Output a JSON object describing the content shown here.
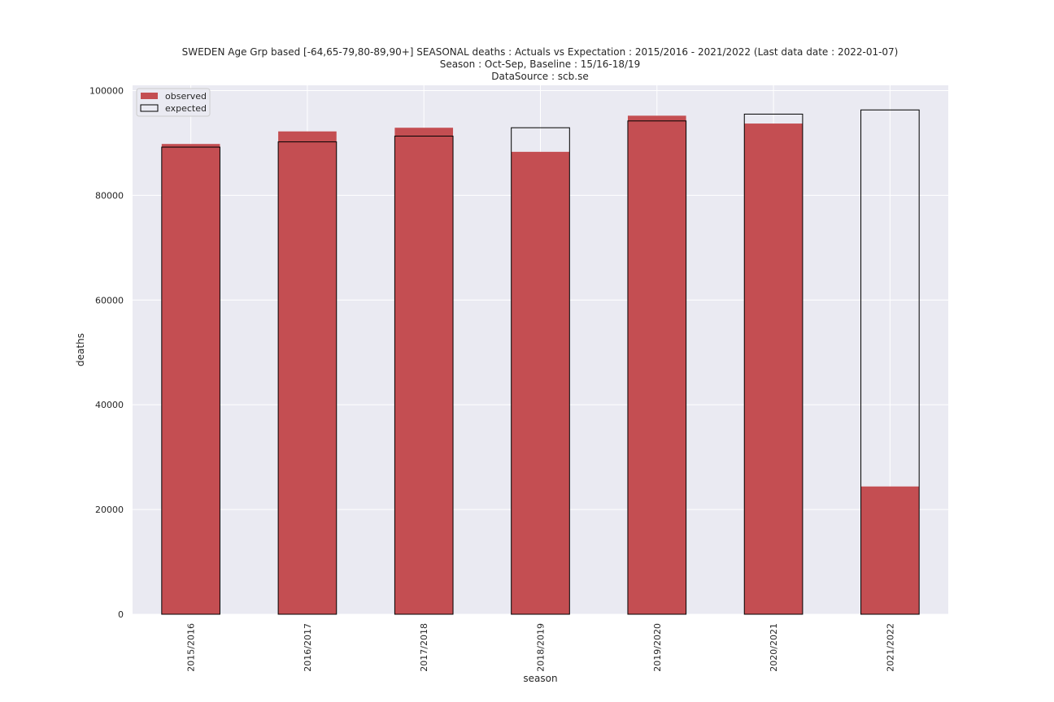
{
  "chart_data": {
    "type": "bar",
    "title_lines": [
      "SWEDEN Age Grp based [-64,65-79,80-89,90+] SEASONAL deaths : Actuals vs Expectation : 2015/2016 - 2021/2022 (Last data date : 2022-01-07)",
      "Season : Oct-Sep, Baseline : 15/16-18/19",
      "DataSource : scb.se"
    ],
    "xlabel": "season",
    "ylabel": "deaths",
    "categories": [
      "2015/2016",
      "2016/2017",
      "2017/2018",
      "2018/2019",
      "2019/2020",
      "2020/2021",
      "2021/2022"
    ],
    "series": [
      {
        "name": "observed",
        "values": [
          89800,
          92200,
          92900,
          88300,
          95200,
          93700,
          24400
        ]
      },
      {
        "name": "expected",
        "values": [
          89200,
          90200,
          91300,
          92900,
          94200,
          95500,
          96300
        ]
      }
    ],
    "ylim": [
      0,
      101000
    ],
    "yticks": [
      0,
      20000,
      40000,
      60000,
      80000,
      100000
    ],
    "ytick_labels": [
      "0",
      "20000",
      "40000",
      "60000",
      "80000",
      "100000"
    ],
    "grid": true,
    "legend_position": "top-left",
    "colors": {
      "observed_fill": "#c44e52",
      "expected_edge": "#000000",
      "plot_background": "#eaeaf2",
      "grid": "#ffffff"
    }
  }
}
